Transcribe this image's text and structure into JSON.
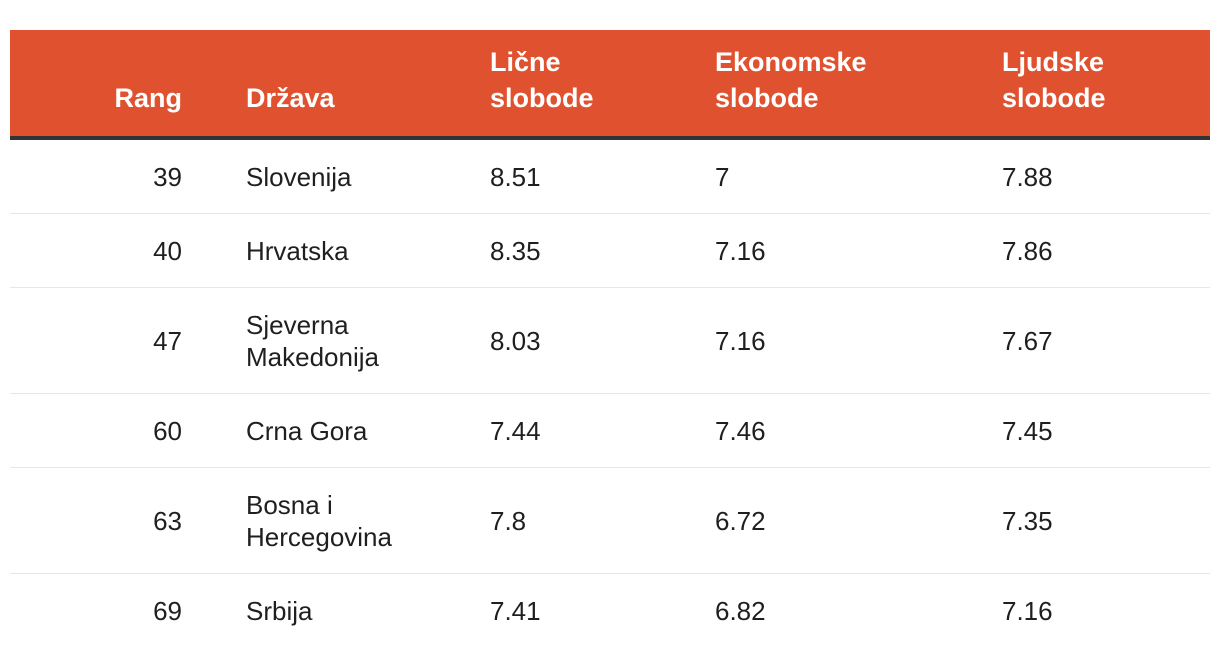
{
  "chart_data": {
    "type": "table",
    "columns": {
      "rank": "Rang",
      "country": "Država",
      "personal": [
        "Lične",
        "slobode"
      ],
      "economic": [
        "Ekonomske",
        "slobode"
      ],
      "human": [
        "Ljudske",
        "slobode"
      ]
    },
    "rows": [
      {
        "rank": "39",
        "country": [
          "Slovenija"
        ],
        "personal": "8.51",
        "economic": "7",
        "human": "7.88"
      },
      {
        "rank": "40",
        "country": [
          "Hrvatska"
        ],
        "personal": "8.35",
        "economic": "7.16",
        "human": "7.86"
      },
      {
        "rank": "47",
        "country": [
          "Sjeverna",
          "Makedonija"
        ],
        "personal": "8.03",
        "economic": "7.16",
        "human": "7.67"
      },
      {
        "rank": "60",
        "country": [
          "Crna Gora"
        ],
        "personal": "7.44",
        "economic": "7.46",
        "human": "7.45"
      },
      {
        "rank": "63",
        "country": [
          "Bosna i",
          "Hercegovina"
        ],
        "personal": "7.8",
        "economic": "6.72",
        "human": "7.35"
      },
      {
        "rank": "69",
        "country": [
          "Srbija"
        ],
        "personal": "7.41",
        "economic": "6.82",
        "human": "7.16"
      }
    ]
  },
  "colors": {
    "header_background": "#e0522f",
    "header_text": "#ffffff",
    "header_rule": "#333333",
    "row_divider": "#e6e6e6"
  }
}
